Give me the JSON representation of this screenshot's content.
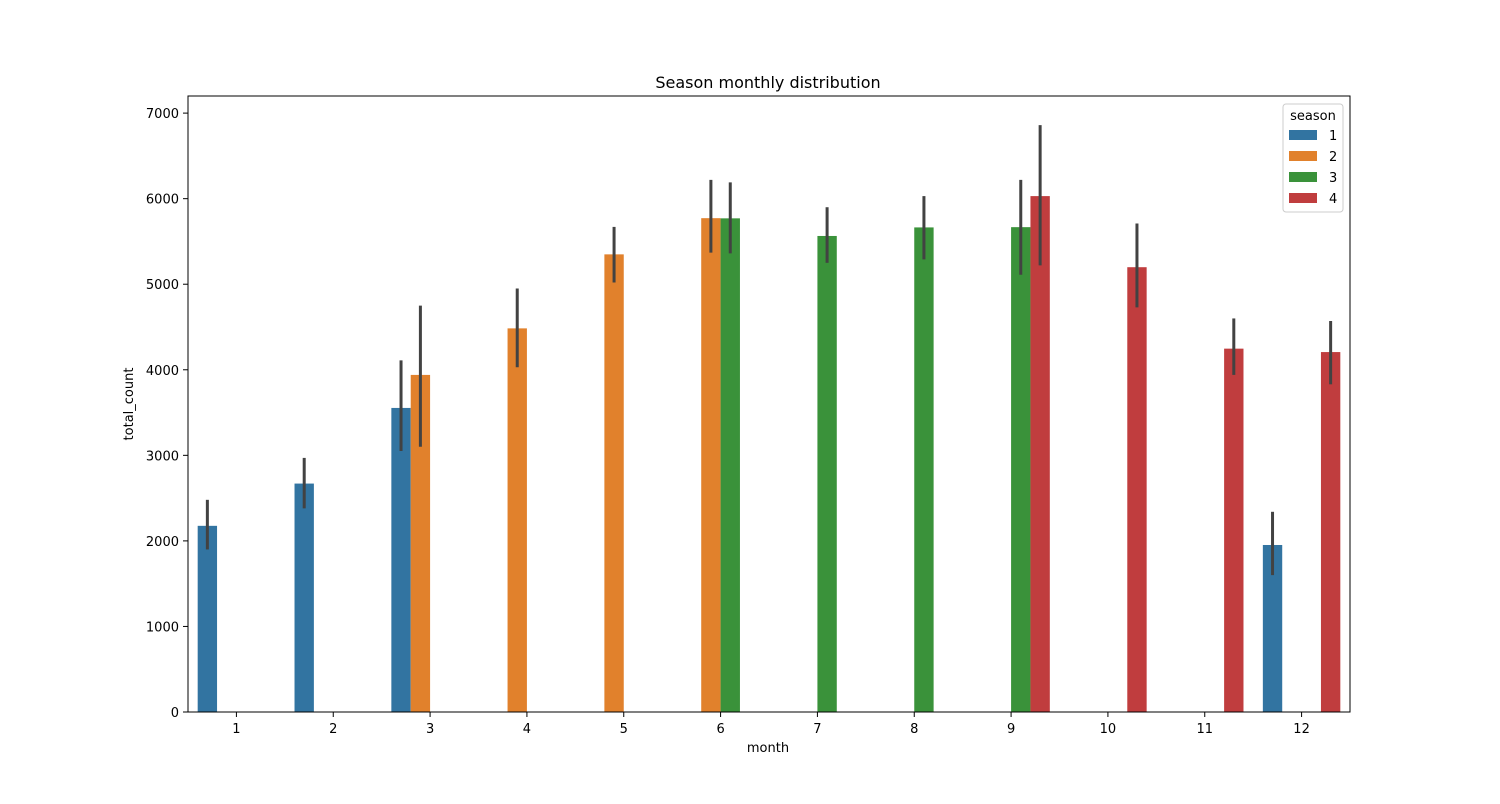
{
  "chart_data": {
    "type": "bar",
    "title": "Season monthly distribution",
    "xlabel": "month",
    "ylabel": "total_count",
    "ylim": [
      0,
      7200
    ],
    "yticks": [
      0,
      1000,
      2000,
      3000,
      4000,
      5000,
      6000,
      7000
    ],
    "categories": [
      "1",
      "2",
      "3",
      "4",
      "5",
      "6",
      "7",
      "8",
      "9",
      "10",
      "11",
      "12"
    ],
    "grid": false,
    "legend": {
      "title": "season",
      "placement": "top-right"
    },
    "series": [
      {
        "name": "1",
        "color": "#3274a1",
        "values": [
          2176,
          2670,
          3554,
          null,
          null,
          null,
          null,
          null,
          null,
          null,
          null,
          1952
        ],
        "err_low": [
          1900,
          2380,
          3050,
          null,
          null,
          null,
          null,
          null,
          null,
          null,
          null,
          1600
        ],
        "err_high": [
          2480,
          2970,
          4110,
          null,
          null,
          null,
          null,
          null,
          null,
          null,
          null,
          2340
        ]
      },
      {
        "name": "2",
        "color": "#e1812c",
        "values": [
          null,
          null,
          3940,
          4484,
          5349,
          5772,
          null,
          null,
          null,
          null,
          null,
          null
        ],
        "err_low": [
          null,
          null,
          3100,
          4030,
          5020,
          5370,
          null,
          null,
          null,
          null,
          null,
          null
        ],
        "err_high": [
          null,
          null,
          4750,
          4950,
          5670,
          6220,
          null,
          null,
          null,
          null,
          null,
          null
        ]
      },
      {
        "name": "3",
        "color": "#3a923a",
        "values": [
          null,
          null,
          null,
          null,
          null,
          5770,
          5564,
          5664,
          5667,
          null,
          null,
          null
        ],
        "err_low": [
          null,
          null,
          null,
          null,
          null,
          5360,
          5250,
          5290,
          5110,
          null,
          null,
          null
        ],
        "err_high": [
          null,
          null,
          null,
          null,
          null,
          6190,
          5900,
          6030,
          6220,
          null,
          null,
          null
        ]
      },
      {
        "name": "4",
        "color": "#c03d3e",
        "values": [
          null,
          null,
          null,
          null,
          null,
          null,
          null,
          null,
          6030,
          5199,
          4247,
          4207
        ],
        "err_low": [
          null,
          null,
          null,
          null,
          null,
          null,
          null,
          null,
          5220,
          4730,
          3940,
          3830
        ],
        "err_high": [
          null,
          null,
          null,
          null,
          null,
          null,
          null,
          null,
          6860,
          5710,
          4600,
          4570
        ]
      }
    ]
  }
}
